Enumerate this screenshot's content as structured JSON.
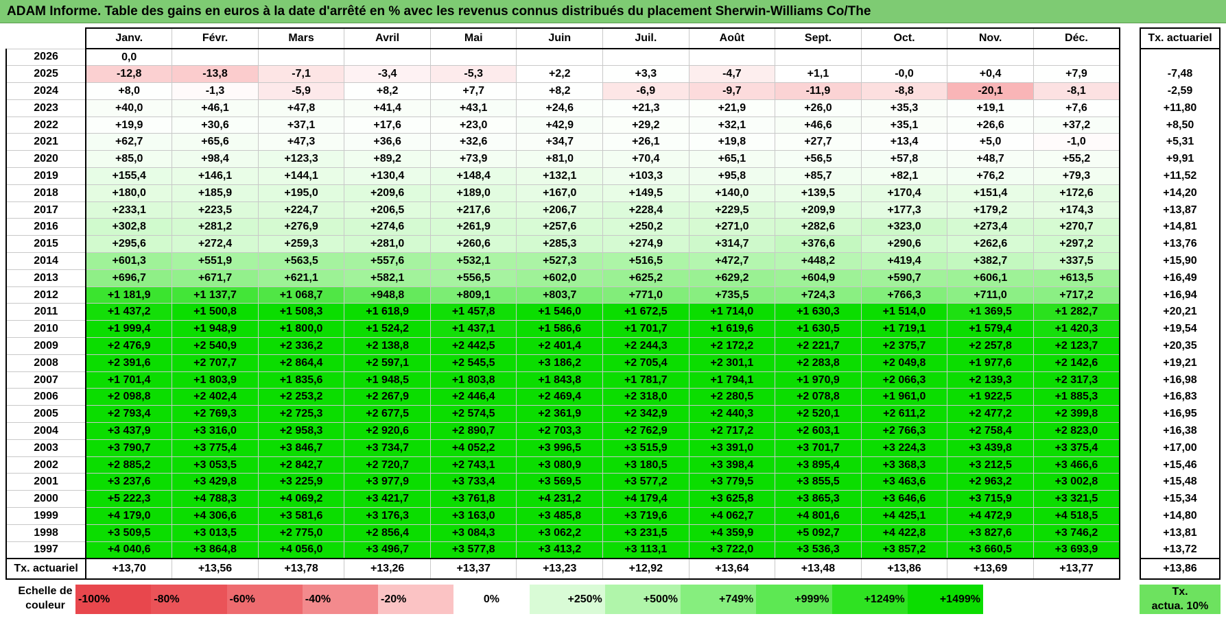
{
  "title": "ADAM Informe. Table des gains en euros à la date d'arrêté en % avec les revenus connus distribués du placement Sherwin-Williams Co/The",
  "months": [
    "Janv.",
    "Févr.",
    "Mars",
    "Avril",
    "Mai",
    "Juin",
    "Juil.",
    "Août",
    "Sept.",
    "Oct.",
    "Nov.",
    "Déc."
  ],
  "side_header": "Tx. actuariel",
  "rows": [
    {
      "year": "2026",
      "values": [
        "0,0",
        "",
        "",
        "",
        "",
        "",
        "",
        "",
        "",
        "",
        "",
        ""
      ],
      "rate": ""
    },
    {
      "year": "2025",
      "values": [
        "-12,8",
        "-13,8",
        "-7,1",
        "-3,4",
        "-5,3",
        "+2,2",
        "+3,3",
        "-4,7",
        "+1,1",
        "-0,0",
        "+0,4",
        "+7,9"
      ],
      "rate": "-7,48"
    },
    {
      "year": "2024",
      "values": [
        "+8,0",
        "-1,3",
        "-5,9",
        "+8,2",
        "+7,7",
        "+8,2",
        "-6,9",
        "-9,7",
        "-11,9",
        "-8,8",
        "-20,1",
        "-8,1"
      ],
      "rate": "-2,59"
    },
    {
      "year": "2023",
      "values": [
        "+40,0",
        "+46,1",
        "+47,8",
        "+41,4",
        "+43,1",
        "+24,6",
        "+21,3",
        "+21,9",
        "+26,0",
        "+35,3",
        "+19,1",
        "+7,6"
      ],
      "rate": "+11,80"
    },
    {
      "year": "2022",
      "values": [
        "+19,9",
        "+30,6",
        "+37,1",
        "+17,6",
        "+23,0",
        "+42,9",
        "+29,2",
        "+32,1",
        "+46,6",
        "+35,1",
        "+26,6",
        "+37,2"
      ],
      "rate": "+8,50"
    },
    {
      "year": "2021",
      "values": [
        "+62,7",
        "+65,6",
        "+47,3",
        "+36,6",
        "+32,6",
        "+34,7",
        "+26,1",
        "+19,8",
        "+27,7",
        "+13,4",
        "+5,0",
        "-1,0"
      ],
      "rate": "+5,31"
    },
    {
      "year": "2020",
      "values": [
        "+85,0",
        "+98,4",
        "+123,3",
        "+89,2",
        "+73,9",
        "+81,0",
        "+70,4",
        "+65,1",
        "+56,5",
        "+57,8",
        "+48,7",
        "+55,2"
      ],
      "rate": "+9,91"
    },
    {
      "year": "2019",
      "values": [
        "+155,4",
        "+146,1",
        "+144,1",
        "+130,4",
        "+148,4",
        "+132,1",
        "+103,3",
        "+95,8",
        "+85,7",
        "+82,1",
        "+76,2",
        "+79,3"
      ],
      "rate": "+11,52"
    },
    {
      "year": "2018",
      "values": [
        "+180,0",
        "+185,9",
        "+195,0",
        "+209,6",
        "+189,0",
        "+167,0",
        "+149,5",
        "+140,0",
        "+139,5",
        "+170,4",
        "+151,4",
        "+172,6"
      ],
      "rate": "+14,20"
    },
    {
      "year": "2017",
      "values": [
        "+233,1",
        "+223,5",
        "+224,7",
        "+206,5",
        "+217,6",
        "+206,7",
        "+228,4",
        "+229,5",
        "+209,9",
        "+177,3",
        "+179,2",
        "+174,3"
      ],
      "rate": "+13,87"
    },
    {
      "year": "2016",
      "values": [
        "+302,8",
        "+281,2",
        "+276,9",
        "+274,6",
        "+261,9",
        "+257,6",
        "+250,2",
        "+271,0",
        "+282,6",
        "+323,0",
        "+273,4",
        "+270,7"
      ],
      "rate": "+14,81"
    },
    {
      "year": "2015",
      "values": [
        "+295,6",
        "+272,4",
        "+259,3",
        "+281,0",
        "+260,6",
        "+285,3",
        "+274,9",
        "+314,7",
        "+376,6",
        "+290,6",
        "+262,6",
        "+297,2"
      ],
      "rate": "+13,76"
    },
    {
      "year": "2014",
      "values": [
        "+601,3",
        "+551,9",
        "+563,5",
        "+557,6",
        "+532,1",
        "+527,3",
        "+516,5",
        "+472,7",
        "+448,2",
        "+419,4",
        "+382,7",
        "+337,5"
      ],
      "rate": "+15,90"
    },
    {
      "year": "2013",
      "values": [
        "+696,7",
        "+671,7",
        "+621,1",
        "+582,1",
        "+556,5",
        "+602,0",
        "+625,2",
        "+629,2",
        "+604,9",
        "+590,7",
        "+606,1",
        "+613,5"
      ],
      "rate": "+16,49"
    },
    {
      "year": "2012",
      "values": [
        "+1 181,9",
        "+1 137,7",
        "+1 068,7",
        "+948,8",
        "+809,1",
        "+803,7",
        "+771,0",
        "+735,5",
        "+724,3",
        "+766,3",
        "+711,0",
        "+717,2"
      ],
      "rate": "+16,94"
    },
    {
      "year": "2011",
      "values": [
        "+1 437,2",
        "+1 500,8",
        "+1 508,3",
        "+1 618,9",
        "+1 457,8",
        "+1 546,0",
        "+1 672,5",
        "+1 714,0",
        "+1 630,3",
        "+1 514,0",
        "+1 369,5",
        "+1 282,7"
      ],
      "rate": "+20,21"
    },
    {
      "year": "2010",
      "values": [
        "+1 999,4",
        "+1 948,9",
        "+1 800,0",
        "+1 524,2",
        "+1 437,1",
        "+1 586,6",
        "+1 701,7",
        "+1 619,6",
        "+1 630,5",
        "+1 719,1",
        "+1 579,4",
        "+1 420,3"
      ],
      "rate": "+19,54"
    },
    {
      "year": "2009",
      "values": [
        "+2 476,9",
        "+2 540,9",
        "+2 336,2",
        "+2 138,8",
        "+2 442,5",
        "+2 401,4",
        "+2 244,3",
        "+2 172,2",
        "+2 221,7",
        "+2 375,7",
        "+2 257,8",
        "+2 123,7"
      ],
      "rate": "+20,35"
    },
    {
      "year": "2008",
      "values": [
        "+2 391,6",
        "+2 707,7",
        "+2 864,4",
        "+2 597,1",
        "+2 545,5",
        "+3 186,2",
        "+2 705,4",
        "+2 301,1",
        "+2 283,8",
        "+2 049,8",
        "+1 977,6",
        "+2 142,6"
      ],
      "rate": "+19,21"
    },
    {
      "year": "2007",
      "values": [
        "+1 701,4",
        "+1 803,9",
        "+1 835,6",
        "+1 948,5",
        "+1 803,8",
        "+1 843,8",
        "+1 781,7",
        "+1 794,1",
        "+1 970,9",
        "+2 066,3",
        "+2 139,3",
        "+2 317,3"
      ],
      "rate": "+16,98"
    },
    {
      "year": "2006",
      "values": [
        "+2 098,8",
        "+2 402,4",
        "+2 253,2",
        "+2 267,9",
        "+2 446,4",
        "+2 469,4",
        "+2 318,0",
        "+2 280,5",
        "+2 078,8",
        "+1 961,0",
        "+1 922,5",
        "+1 885,3"
      ],
      "rate": "+16,83"
    },
    {
      "year": "2005",
      "values": [
        "+2 793,4",
        "+2 769,3",
        "+2 725,3",
        "+2 677,5",
        "+2 574,5",
        "+2 361,9",
        "+2 342,9",
        "+2 440,3",
        "+2 520,1",
        "+2 611,2",
        "+2 477,2",
        "+2 399,8"
      ],
      "rate": "+16,95"
    },
    {
      "year": "2004",
      "values": [
        "+3 437,9",
        "+3 316,0",
        "+2 958,3",
        "+2 920,6",
        "+2 890,7",
        "+2 703,3",
        "+2 762,9",
        "+2 717,2",
        "+2 603,1",
        "+2 766,3",
        "+2 758,4",
        "+2 823,0"
      ],
      "rate": "+16,38"
    },
    {
      "year": "2003",
      "values": [
        "+3 790,7",
        "+3 775,4",
        "+3 846,7",
        "+3 734,7",
        "+4 052,2",
        "+3 996,5",
        "+3 515,9",
        "+3 391,0",
        "+3 701,7",
        "+3 224,3",
        "+3 439,8",
        "+3 375,4"
      ],
      "rate": "+17,00"
    },
    {
      "year": "2002",
      "values": [
        "+2 885,2",
        "+3 053,5",
        "+2 842,7",
        "+2 720,7",
        "+2 743,1",
        "+3 080,9",
        "+3 180,5",
        "+3 398,4",
        "+3 895,4",
        "+3 368,3",
        "+3 212,5",
        "+3 466,6"
      ],
      "rate": "+15,46"
    },
    {
      "year": "2001",
      "values": [
        "+3 237,6",
        "+3 429,8",
        "+3 225,9",
        "+3 977,9",
        "+3 733,4",
        "+3 569,5",
        "+3 577,2",
        "+3 779,5",
        "+3 855,5",
        "+3 463,6",
        "+2 963,2",
        "+3 002,8"
      ],
      "rate": "+15,48"
    },
    {
      "year": "2000",
      "values": [
        "+5 222,3",
        "+4 788,3",
        "+4 069,2",
        "+3 421,7",
        "+3 761,8",
        "+4 231,2",
        "+4 179,4",
        "+3 625,8",
        "+3 865,3",
        "+3 646,6",
        "+3 715,9",
        "+3 321,5"
      ],
      "rate": "+15,34"
    },
    {
      "year": "1999",
      "values": [
        "+4 179,0",
        "+4 306,6",
        "+3 581,6",
        "+3 176,3",
        "+3 163,0",
        "+3 485,8",
        "+3 719,6",
        "+4 062,7",
        "+4 801,6",
        "+4 425,1",
        "+4 472,9",
        "+4 518,5"
      ],
      "rate": "+14,80"
    },
    {
      "year": "1998",
      "values": [
        "+3 509,5",
        "+3 013,5",
        "+2 775,0",
        "+2 856,4",
        "+3 084,3",
        "+3 062,2",
        "+3 231,5",
        "+4 359,9",
        "+5 092,7",
        "+4 422,8",
        "+3 827,6",
        "+3 746,2"
      ],
      "rate": "+13,81"
    },
    {
      "year": "1997",
      "values": [
        "+4 040,6",
        "+3 864,8",
        "+4 056,0",
        "+3 496,7",
        "+3 577,8",
        "+3 413,2",
        "+3 113,1",
        "+3 722,0",
        "+3 536,3",
        "+3 857,2",
        "+3 660,5",
        "+3 693,9"
      ],
      "rate": "+13,72"
    }
  ],
  "footer": {
    "label": "Tx. actuariel",
    "values": [
      "+13,70",
      "+13,56",
      "+13,78",
      "+13,26",
      "+13,37",
      "+13,23",
      "+12,92",
      "+13,64",
      "+13,48",
      "+13,86",
      "+13,69",
      "+13,77"
    ],
    "rate": "+13,86"
  },
  "legend": {
    "label_line1": "Echelle de",
    "label_line2": "couleur",
    "swatches": [
      {
        "text": "-100%",
        "color": "#e8474d",
        "align": "left"
      },
      {
        "text": "-80%",
        "color": "#ea5358",
        "align": "left"
      },
      {
        "text": "-60%",
        "color": "#ee6b6f",
        "align": "left"
      },
      {
        "text": "-40%",
        "color": "#f38a8d",
        "align": "left"
      },
      {
        "text": "-20%",
        "color": "#fbc3c4",
        "align": "left"
      },
      {
        "text": "0%",
        "color": "#ffffff",
        "align": "center"
      },
      {
        "text": "+250%",
        "color": "#d9fbd6",
        "align": "right"
      },
      {
        "text": "+500%",
        "color": "#b0f5aa",
        "align": "right"
      },
      {
        "text": "+749%",
        "color": "#86ee7e",
        "align": "right"
      },
      {
        "text": "+999%",
        "color": "#5de853",
        "align": "right"
      },
      {
        "text": "+1249%",
        "color": "#2fe222",
        "align": "right"
      },
      {
        "text": "+1499%",
        "color": "#0bdd00",
        "align": "right"
      }
    ],
    "tx_line1": "Tx.",
    "tx_line2": "actua. 10%"
  },
  "colors": {
    "title_bg": "#7ecb73",
    "tx_swatch": "#6de25f"
  }
}
